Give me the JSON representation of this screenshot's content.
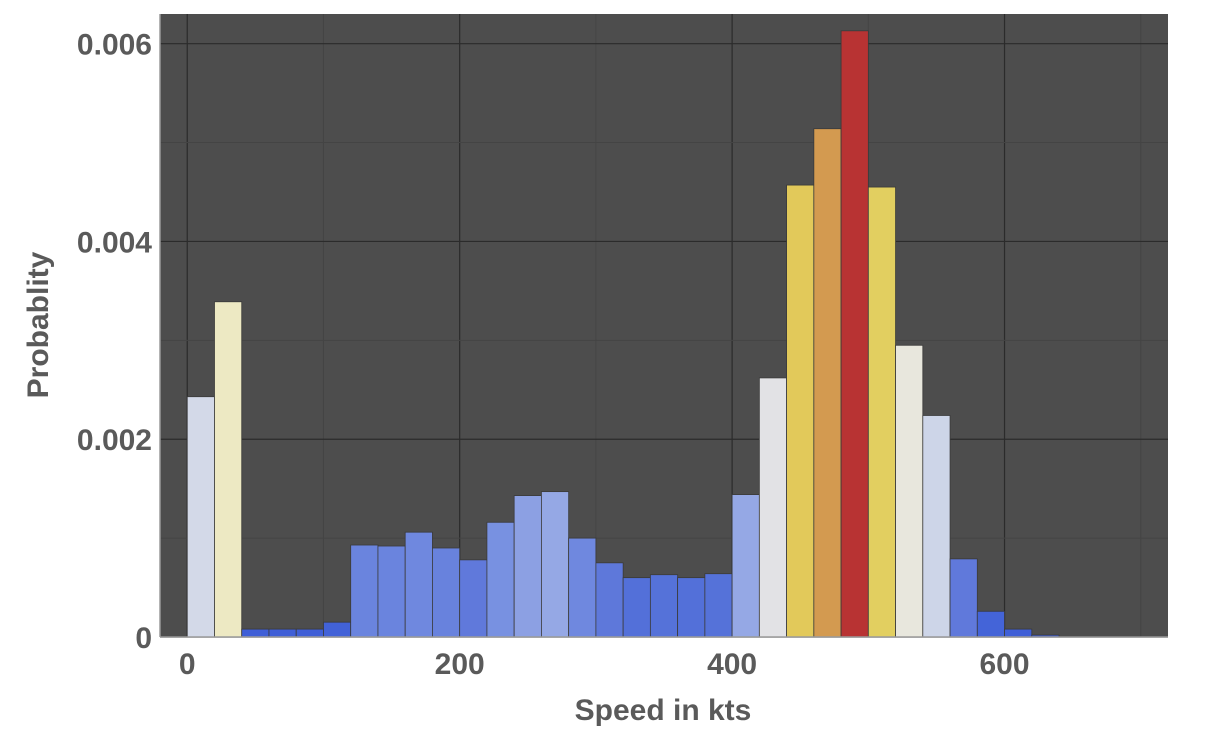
{
  "chart_data": {
    "type": "bar",
    "subtype": "histogram",
    "xlabel": "Speed in kts",
    "ylabel": "Probablity",
    "xlim": [
      -20,
      720
    ],
    "ylim": [
      0,
      0.0063
    ],
    "xticks": [
      0,
      200,
      400,
      600
    ],
    "yticks": [
      0,
      0.002,
      0.004,
      0.006
    ],
    "xtick_labels": [
      "0",
      "200",
      "400",
      "600"
    ],
    "ytick_labels": [
      "0",
      "0.002",
      "0.004",
      "0.006"
    ],
    "grid": true,
    "background": "#4d4d4d",
    "bin_width": 20,
    "bins": [
      {
        "x0": 0,
        "x1": 20,
        "value": 0.00243,
        "color": "#d3d9e8"
      },
      {
        "x0": 20,
        "x1": 40,
        "value": 0.00339,
        "color": "#ede9c3"
      },
      {
        "x0": 40,
        "x1": 60,
        "value": 8e-05,
        "color": "#3f5fd7"
      },
      {
        "x0": 60,
        "x1": 80,
        "value": 8e-05,
        "color": "#3f5fd7"
      },
      {
        "x0": 80,
        "x1": 100,
        "value": 8e-05,
        "color": "#3f5fd7"
      },
      {
        "x0": 100,
        "x1": 120,
        "value": 0.00015,
        "color": "#4262d8"
      },
      {
        "x0": 120,
        "x1": 140,
        "value": 0.00093,
        "color": "#6a84de"
      },
      {
        "x0": 140,
        "x1": 160,
        "value": 0.00092,
        "color": "#6a84de"
      },
      {
        "x0": 160,
        "x1": 180,
        "value": 0.00106,
        "color": "#6f88df"
      },
      {
        "x0": 180,
        "x1": 200,
        "value": 0.0009,
        "color": "#6882dd"
      },
      {
        "x0": 200,
        "x1": 220,
        "value": 0.00078,
        "color": "#6079db"
      },
      {
        "x0": 220,
        "x1": 240,
        "value": 0.00116,
        "color": "#7891e1"
      },
      {
        "x0": 240,
        "x1": 260,
        "value": 0.00143,
        "color": "#8ca0e3"
      },
      {
        "x0": 260,
        "x1": 280,
        "value": 0.00147,
        "color": "#95a8e5"
      },
      {
        "x0": 280,
        "x1": 300,
        "value": 0.001,
        "color": "#6f88df"
      },
      {
        "x0": 300,
        "x1": 320,
        "value": 0.00075,
        "color": "#5e78da"
      },
      {
        "x0": 320,
        "x1": 340,
        "value": 0.0006,
        "color": "#5370d9"
      },
      {
        "x0": 340,
        "x1": 360,
        "value": 0.00063,
        "color": "#5572d9"
      },
      {
        "x0": 360,
        "x1": 380,
        "value": 0.0006,
        "color": "#5370d9"
      },
      {
        "x0": 380,
        "x1": 400,
        "value": 0.00064,
        "color": "#5572d9"
      },
      {
        "x0": 400,
        "x1": 420,
        "value": 0.00144,
        "color": "#95a8e5"
      },
      {
        "x0": 420,
        "x1": 440,
        "value": 0.00262,
        "color": "#e2e2e5"
      },
      {
        "x0": 440,
        "x1": 460,
        "value": 0.00457,
        "color": "#e2c95a"
      },
      {
        "x0": 460,
        "x1": 480,
        "value": 0.00514,
        "color": "#d39a50"
      },
      {
        "x0": 480,
        "x1": 500,
        "value": 0.00613,
        "color": "#b83333"
      },
      {
        "x0": 500,
        "x1": 520,
        "value": 0.00455,
        "color": "#e2cf60"
      },
      {
        "x0": 520,
        "x1": 540,
        "value": 0.00295,
        "color": "#e8e7dd"
      },
      {
        "x0": 540,
        "x1": 560,
        "value": 0.00224,
        "color": "#cdd5e8"
      },
      {
        "x0": 560,
        "x1": 580,
        "value": 0.00079,
        "color": "#6079db"
      },
      {
        "x0": 580,
        "x1": 600,
        "value": 0.00026,
        "color": "#4464d8"
      },
      {
        "x0": 600,
        "x1": 620,
        "value": 8e-05,
        "color": "#3f5fd7"
      },
      {
        "x0": 620,
        "x1": 640,
        "value": 2e-05,
        "color": "#3d5dd6"
      },
      {
        "x0": 640,
        "x1": 660,
        "value": 5e-06,
        "color": "#3d5dd6"
      },
      {
        "x0": 660,
        "x1": 680,
        "value": 5e-06,
        "color": "#3d5dd6"
      },
      {
        "x0": 680,
        "x1": 700,
        "value": 5e-06,
        "color": "#3d5dd6"
      }
    ]
  }
}
